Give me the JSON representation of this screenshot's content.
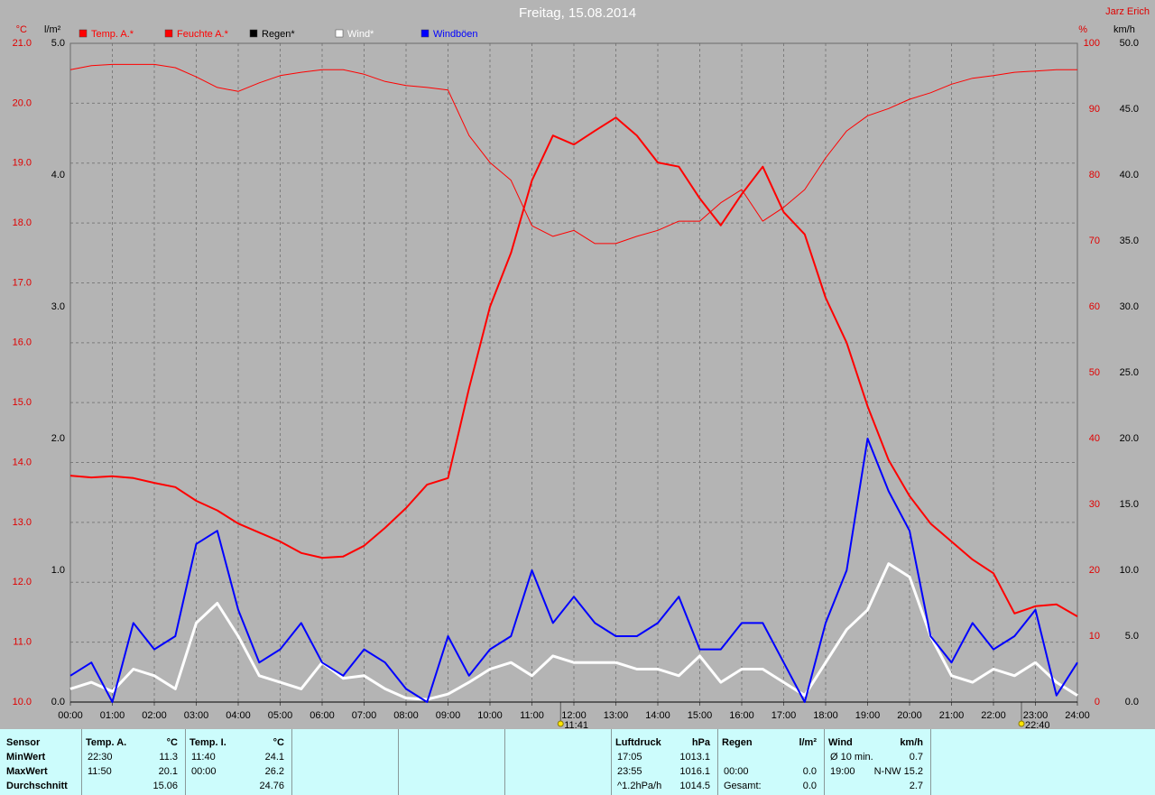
{
  "chart_data": {
    "type": "line",
    "title": "Freitag, 15.08.2014",
    "author": "Jarz Erich",
    "y_label": "°C",
    "y3_label": "l/m²",
    "y2_label": "%",
    "y4_label": "km/h",
    "xlim": [
      0,
      24
    ],
    "xticks": [
      {
        "value": 0,
        "label": "00:00"
      },
      {
        "value": 1,
        "label": "01:00"
      },
      {
        "value": 2,
        "label": "02:00"
      },
      {
        "value": 3,
        "label": "03:00"
      },
      {
        "value": 4,
        "label": "04:00"
      },
      {
        "value": 5,
        "label": "05:00"
      },
      {
        "value": 6,
        "label": "06:00"
      },
      {
        "value": 7,
        "label": "07:00"
      },
      {
        "value": 8,
        "label": "08:00"
      },
      {
        "value": 9,
        "label": "09:00"
      },
      {
        "value": 10,
        "label": "10:00"
      },
      {
        "value": 11,
        "label": "11:00"
      },
      {
        "value": 12,
        "label": "12:00"
      },
      {
        "value": 13,
        "label": "13:00"
      },
      {
        "value": 14,
        "label": "14:00"
      },
      {
        "value": 15,
        "label": "15:00"
      },
      {
        "value": 16,
        "label": "16:00"
      },
      {
        "value": 17,
        "label": "17:00"
      },
      {
        "value": 18,
        "label": "18:00"
      },
      {
        "value": 19,
        "label": "19:00"
      },
      {
        "value": 20,
        "label": "20:00"
      },
      {
        "value": 21,
        "label": "21:00"
      },
      {
        "value": 22,
        "label": "22:00"
      },
      {
        "value": 23,
        "label": "23:00"
      },
      {
        "value": 24,
        "label": "24:00"
      }
    ],
    "ylim": [
      10,
      21
    ],
    "yticks": [
      {
        "value": 10,
        "label": "10.0"
      },
      {
        "value": 11,
        "label": "11.0"
      },
      {
        "value": 12,
        "label": "12.0"
      },
      {
        "value": 13,
        "label": "13.0"
      },
      {
        "value": 14,
        "label": "14.0"
      },
      {
        "value": 15,
        "label": "15.0"
      },
      {
        "value": 16,
        "label": "16.0"
      },
      {
        "value": 17,
        "label": "17.0"
      },
      {
        "value": 18,
        "label": "18.0"
      },
      {
        "value": 19,
        "label": "19.0"
      },
      {
        "value": 20,
        "label": "20.0"
      },
      {
        "value": 21,
        "label": "21.0"
      }
    ],
    "y3lim": [
      0,
      5
    ],
    "y3ticks": [
      {
        "value": 0,
        "label": "0.0"
      },
      {
        "value": 1,
        "label": "1.0"
      },
      {
        "value": 2,
        "label": "2.0"
      },
      {
        "value": 3,
        "label": "3.0"
      },
      {
        "value": 4,
        "label": "4.0"
      },
      {
        "value": 5,
        "label": "5.0"
      }
    ],
    "y2lim": [
      0,
      100
    ],
    "y2ticks": [
      0,
      10,
      20,
      30,
      40,
      50,
      60,
      70,
      80,
      90,
      100
    ],
    "y4lim": [
      0,
      50
    ],
    "y4ticks": [
      {
        "value": 0,
        "label": "0.0"
      },
      {
        "value": 5,
        "label": "5.0"
      },
      {
        "value": 10,
        "label": "10.0"
      },
      {
        "value": 15,
        "label": "15.0"
      },
      {
        "value": 20,
        "label": "20.0"
      },
      {
        "value": 25,
        "label": "25.0"
      },
      {
        "value": 30,
        "label": "30.0"
      },
      {
        "value": 35,
        "label": "35.0"
      },
      {
        "value": 40,
        "label": "40.0"
      },
      {
        "value": 45,
        "label": "45.0"
      },
      {
        "value": 50,
        "label": "50.0"
      }
    ],
    "grid": true,
    "x": [
      0,
      0.5,
      1,
      1.5,
      2,
      2.5,
      3,
      3.5,
      4,
      4.5,
      5,
      5.5,
      6,
      6.5,
      7,
      7.5,
      8,
      8.5,
      9,
      9.5,
      10,
      10.5,
      11,
      11.5,
      12,
      12.5,
      13,
      13.5,
      14,
      14.5,
      15,
      15.5,
      16,
      16.5,
      17,
      17.5,
      18,
      18.5,
      19,
      19.5,
      20,
      20.5,
      21,
      21.5,
      22,
      22.5,
      23,
      23.5,
      24
    ],
    "series": [
      {
        "name": "Temp. A.*",
        "color": "#ff0000",
        "axis": "y",
        "width": 2,
        "values": [
          13.78,
          13.75,
          13.77,
          13.74,
          13.66,
          13.59,
          13.36,
          13.2,
          12.98,
          12.83,
          12.68,
          12.49,
          12.41,
          12.43,
          12.61,
          12.91,
          13.24,
          13.63,
          13.74,
          15.24,
          16.6,
          17.5,
          18.71,
          19.46,
          19.31,
          19.54,
          19.76,
          19.46,
          19.01,
          18.94,
          18.41,
          17.96,
          18.48,
          18.94,
          18.18,
          17.81,
          16.75,
          16.0,
          14.94,
          14.04,
          13.44,
          12.98,
          12.68,
          12.38,
          12.15,
          11.48,
          11.6,
          11.63,
          11.43
        ]
      },
      {
        "name": "Feuchte A.*",
        "color": "#ff0000",
        "axis": "y2",
        "width": 1,
        "values": [
          96.0,
          96.6,
          96.8,
          96.8,
          96.8,
          96.3,
          94.9,
          93.3,
          92.7,
          94.0,
          95.1,
          95.6,
          96.0,
          96.0,
          95.3,
          94.2,
          93.6,
          93.3,
          92.9,
          86.0,
          81.9,
          79.2,
          72.3,
          70.7,
          71.6,
          69.6,
          69.6,
          70.7,
          71.6,
          73.0,
          73.0,
          75.8,
          77.8,
          73.0,
          75.1,
          77.8,
          82.6,
          86.7,
          89.0,
          90.1,
          91.5,
          92.5,
          93.8,
          94.7,
          95.1,
          95.6,
          95.8,
          96.0,
          96.0
        ]
      },
      {
        "name": "Regen*",
        "color": "#000000",
        "axis": "y3",
        "width": 1,
        "values": [
          0,
          0,
          0,
          0,
          0,
          0,
          0,
          0,
          0,
          0,
          0,
          0,
          0,
          0,
          0,
          0,
          0,
          0,
          0,
          0,
          0,
          0,
          0,
          0,
          0,
          0,
          0,
          0,
          0,
          0,
          0,
          0,
          0,
          0,
          0,
          0,
          0,
          0,
          0,
          0,
          0,
          0,
          0,
          0,
          0,
          0,
          0,
          0,
          0
        ]
      },
      {
        "name": "Wind*",
        "color": "#ffffff",
        "axis": "y4",
        "width": 3,
        "values": [
          1.0,
          1.5,
          0.8,
          2.5,
          2.0,
          1.0,
          6.0,
          7.5,
          5.0,
          2.0,
          1.5,
          1.0,
          3.0,
          1.8,
          2.0,
          1.0,
          0.3,
          0.2,
          0.6,
          1.5,
          2.5,
          3.0,
          2.0,
          3.5,
          3.0,
          3.0,
          3.0,
          2.5,
          2.5,
          2.0,
          3.5,
          1.5,
          2.5,
          2.5,
          1.5,
          0.5,
          3.0,
          5.5,
          7.0,
          10.5,
          9.5,
          5.0,
          2.0,
          1.5,
          2.5,
          2.0,
          3.0,
          1.5,
          0.5
        ]
      },
      {
        "name": "Windböen",
        "color": "#0000ff",
        "axis": "y4",
        "width": 2,
        "values": [
          2,
          3,
          0,
          6,
          4,
          5,
          12,
          13,
          7,
          3,
          4,
          6,
          3,
          2,
          4,
          3,
          1,
          0,
          5,
          2,
          4,
          5,
          10,
          6,
          8,
          6,
          5,
          5,
          6,
          8,
          4,
          4,
          6,
          6,
          3,
          0,
          6,
          10,
          20,
          16,
          13,
          5,
          3,
          6,
          4,
          5,
          7,
          0.5,
          3
        ]
      }
    ],
    "annotations": [
      {
        "x": 11.683,
        "label": "11:41"
      },
      {
        "x": 22.667,
        "label": "22:40"
      }
    ]
  },
  "table": {
    "row_labels": [
      "Sensor",
      "MinWert",
      "MaxWert",
      "Durchschnitt"
    ],
    "blocks": [
      {
        "header": [
          "Temp. A.",
          "°C"
        ],
        "rows": [
          [
            "22:30",
            "11.3"
          ],
          [
            "11:50",
            "20.1"
          ],
          [
            "15.06"
          ]
        ]
      },
      {
        "header": [
          "Temp. I.",
          "°C"
        ],
        "rows": [
          [
            "11:40",
            "24.1"
          ],
          [
            "00:00",
            "26.2"
          ],
          [
            "24.76"
          ]
        ]
      },
      {
        "header": [
          "Luftdruck",
          "hPa"
        ],
        "rows": [
          [
            "17:05",
            "1013.1"
          ],
          [
            "23:55",
            "1016.1"
          ],
          [
            "^1.2hPa/h",
            "1014.5"
          ]
        ]
      },
      {
        "header": [
          "Regen",
          "l/m²"
        ],
        "rows": [
          null,
          [
            "00:00",
            "0.0"
          ],
          [
            "Gesamt:",
            "0.0"
          ]
        ]
      },
      {
        "header": [
          "Wind",
          "km/h"
        ],
        "rows": [
          [
            "Ø 10 min.",
            "0.7"
          ],
          [
            "19:00",
            "N-NW 15.2"
          ],
          [
            "2.7"
          ]
        ]
      }
    ]
  }
}
